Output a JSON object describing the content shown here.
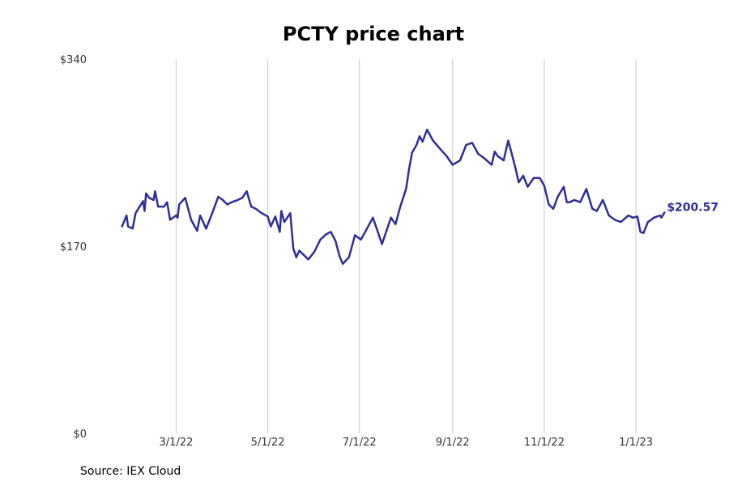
{
  "source_text": "Source: IEX Cloud",
  "colors": {
    "line": "#2e2e96",
    "grid": "#c8c8c8",
    "axis_text": "#333333"
  },
  "chart_data": {
    "type": "line",
    "title": "PCTY price chart",
    "xlabel": "",
    "ylabel": "",
    "ylim": [
      0,
      340
    ],
    "xlim": [
      "2022-01-01",
      "2023-02-05"
    ],
    "y_ticks": [
      {
        "value": 0,
        "label": "$0"
      },
      {
        "value": 170,
        "label": "$170"
      },
      {
        "value": 340,
        "label": "$340"
      }
    ],
    "x_ticks": [
      {
        "date": "2022-03-01",
        "label": "3/1/22"
      },
      {
        "date": "2022-05-01",
        "label": "5/1/22"
      },
      {
        "date": "2022-07-01",
        "label": "7/1/22"
      },
      {
        "date": "2022-09-01",
        "label": "9/1/22"
      },
      {
        "date": "2022-11-01",
        "label": "11/1/22"
      },
      {
        "date": "2023-01-01",
        "label": "1/1/23"
      }
    ],
    "grid": "vertical lines at x ticks",
    "end_label": "$200.57",
    "series": [
      {
        "values": [
          [
            "2022-01-24",
            188
          ],
          [
            "2022-01-27",
            198
          ],
          [
            "2022-01-28",
            188
          ],
          [
            "2022-01-31",
            186
          ],
          [
            "2022-02-02",
            200
          ],
          [
            "2022-02-07",
            211
          ],
          [
            "2022-02-08",
            202
          ],
          [
            "2022-02-09",
            218
          ],
          [
            "2022-02-11",
            214
          ],
          [
            "2022-02-14",
            212
          ],
          [
            "2022-02-15",
            220
          ],
          [
            "2022-02-17",
            206
          ],
          [
            "2022-02-21",
            206
          ],
          [
            "2022-02-23",
            210
          ],
          [
            "2022-02-25",
            194
          ],
          [
            "2022-03-01",
            198
          ],
          [
            "2022-03-02",
            196
          ],
          [
            "2022-03-03",
            208
          ],
          [
            "2022-03-07",
            214
          ],
          [
            "2022-03-09",
            204
          ],
          [
            "2022-03-11",
            194
          ],
          [
            "2022-03-15",
            184
          ],
          [
            "2022-03-17",
            198
          ],
          [
            "2022-03-21",
            186
          ],
          [
            "2022-03-25",
            200
          ],
          [
            "2022-03-29",
            215
          ],
          [
            "2022-04-01",
            212
          ],
          [
            "2022-04-04",
            208
          ],
          [
            "2022-04-07",
            210
          ],
          [
            "2022-04-11",
            212
          ],
          [
            "2022-04-14",
            214
          ],
          [
            "2022-04-17",
            220
          ],
          [
            "2022-04-20",
            206
          ],
          [
            "2022-04-23",
            204
          ],
          [
            "2022-04-27",
            200
          ],
          [
            "2022-05-01",
            197
          ],
          [
            "2022-05-03",
            188
          ],
          [
            "2022-05-06",
            197
          ],
          [
            "2022-05-09",
            183
          ],
          [
            "2022-05-10",
            202
          ],
          [
            "2022-05-12",
            192
          ],
          [
            "2022-05-16",
            200
          ],
          [
            "2022-05-18",
            168
          ],
          [
            "2022-05-20",
            160
          ],
          [
            "2022-05-22",
            166
          ],
          [
            "2022-05-25",
            162
          ],
          [
            "2022-05-28",
            158
          ],
          [
            "2022-06-01",
            165
          ],
          [
            "2022-06-05",
            176
          ],
          [
            "2022-06-09",
            181
          ],
          [
            "2022-06-12",
            183
          ],
          [
            "2022-06-15",
            175
          ],
          [
            "2022-06-18",
            160
          ],
          [
            "2022-06-20",
            154
          ],
          [
            "2022-06-24",
            160
          ],
          [
            "2022-06-28",
            180
          ],
          [
            "2022-07-02",
            176
          ],
          [
            "2022-07-06",
            186
          ],
          [
            "2022-07-10",
            196
          ],
          [
            "2022-07-14",
            180
          ],
          [
            "2022-07-16",
            172
          ],
          [
            "2022-07-18",
            180
          ],
          [
            "2022-07-22",
            196
          ],
          [
            "2022-07-25",
            190
          ],
          [
            "2022-07-28",
            205
          ],
          [
            "2022-08-01",
            222
          ],
          [
            "2022-08-03",
            240
          ],
          [
            "2022-08-05",
            255
          ],
          [
            "2022-08-08",
            262
          ],
          [
            "2022-08-10",
            270
          ],
          [
            "2022-08-12",
            265
          ],
          [
            "2022-08-15",
            276
          ],
          [
            "2022-08-19",
            266
          ],
          [
            "2022-08-24",
            258
          ],
          [
            "2022-08-28",
            252
          ],
          [
            "2022-09-01",
            244
          ],
          [
            "2022-09-06",
            248
          ],
          [
            "2022-09-10",
            262
          ],
          [
            "2022-09-14",
            264
          ],
          [
            "2022-09-18",
            254
          ],
          [
            "2022-09-22",
            250
          ],
          [
            "2022-09-27",
            244
          ],
          [
            "2022-09-29",
            256
          ],
          [
            "2022-10-01",
            252
          ],
          [
            "2022-10-05",
            248
          ],
          [
            "2022-10-08",
            266
          ],
          [
            "2022-10-10",
            256
          ],
          [
            "2022-10-13",
            240
          ],
          [
            "2022-10-15",
            228
          ],
          [
            "2022-10-18",
            234
          ],
          [
            "2022-10-21",
            224
          ],
          [
            "2022-10-25",
            232
          ],
          [
            "2022-10-29",
            232
          ],
          [
            "2022-11-01",
            225
          ],
          [
            "2022-11-04",
            208
          ],
          [
            "2022-11-07",
            204
          ],
          [
            "2022-11-10",
            215
          ],
          [
            "2022-11-14",
            224
          ],
          [
            "2022-11-16",
            210
          ],
          [
            "2022-11-18",
            210
          ],
          [
            "2022-11-21",
            212
          ],
          [
            "2022-11-25",
            210
          ],
          [
            "2022-11-29",
            222
          ],
          [
            "2022-12-03",
            204
          ],
          [
            "2022-12-06",
            202
          ],
          [
            "2022-12-10",
            212
          ],
          [
            "2022-12-14",
            198
          ],
          [
            "2022-12-18",
            194
          ],
          [
            "2022-12-22",
            192
          ],
          [
            "2022-12-27",
            198
          ],
          [
            "2022-12-30",
            196
          ],
          [
            "2023-01-02",
            197
          ],
          [
            "2023-01-04",
            183
          ],
          [
            "2023-01-06",
            182
          ],
          [
            "2023-01-09",
            192
          ],
          [
            "2023-01-13",
            196
          ],
          [
            "2023-01-17",
            198
          ],
          [
            "2023-01-18",
            196
          ],
          [
            "2023-01-20",
            200.57
          ]
        ]
      }
    ]
  }
}
